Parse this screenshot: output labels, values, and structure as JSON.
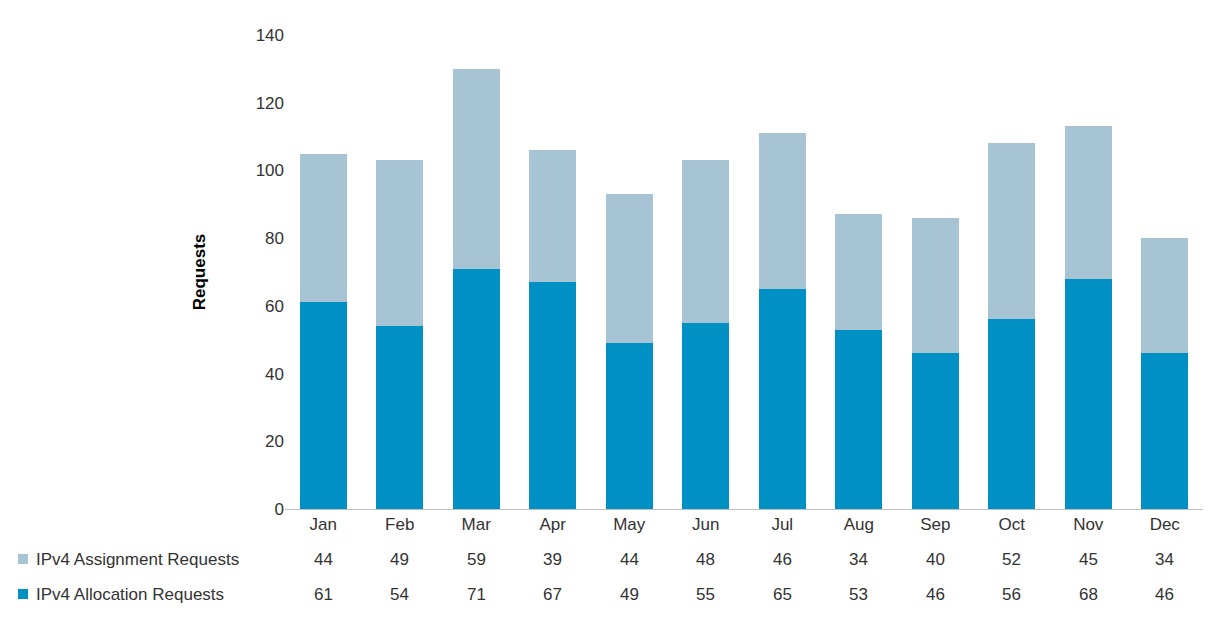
{
  "chart_data": {
    "type": "bar",
    "stacked": true,
    "categories": [
      "Jan",
      "Feb",
      "Mar",
      "Apr",
      "May",
      "Jun",
      "Jul",
      "Aug",
      "Sep",
      "Oct",
      "Nov",
      "Dec"
    ],
    "series": [
      {
        "name": "IPv4 Allocation Requests",
        "color": "#0090c4",
        "values": [
          61,
          54,
          71,
          67,
          49,
          55,
          65,
          53,
          46,
          56,
          68,
          46
        ]
      },
      {
        "name": "IPv4 Assignment Requests",
        "color": "#a7c4d4",
        "values": [
          44,
          49,
          59,
          39,
          44,
          48,
          46,
          34,
          40,
          52,
          45,
          34
        ]
      }
    ],
    "y_label": "Requests",
    "ylim": [
      0,
      140
    ],
    "yticks": [
      0,
      20,
      40,
      60,
      80,
      100,
      120,
      140
    ],
    "grid": false,
    "legend": "bottom left"
  }
}
